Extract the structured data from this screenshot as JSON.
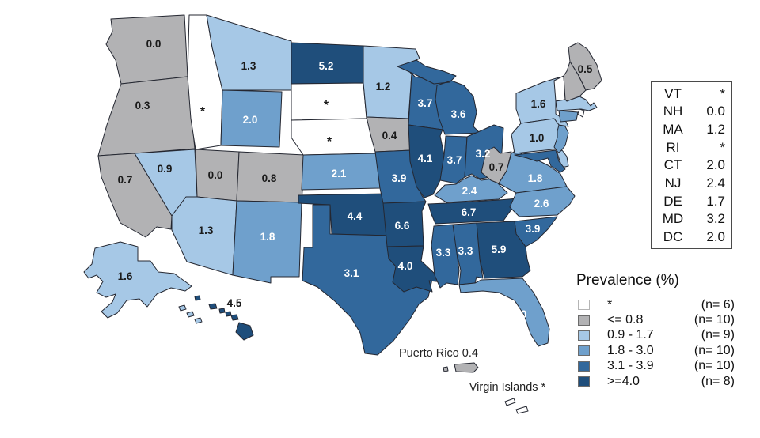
{
  "colors": {
    "star": "#FFFFFF",
    "le_08": "#B2B2B4",
    "c09_17": "#A6C8E6",
    "c18_30": "#6FA0CC",
    "c31_39": "#32689C",
    "ge_40": "#1F4E7B",
    "border": "#242731",
    "label_dark": "#1A1A1A",
    "label_light": "#FFFFFF"
  },
  "map": {
    "states": [
      {
        "id": "WA",
        "label": "0.0",
        "category": "le_08"
      },
      {
        "id": "OR",
        "label": "0.3",
        "category": "le_08"
      },
      {
        "id": "CA",
        "label": "0.7",
        "category": "le_08"
      },
      {
        "id": "ID",
        "label": "*",
        "category": "star"
      },
      {
        "id": "NV",
        "label": "0.9",
        "category": "c09_17"
      },
      {
        "id": "UT",
        "label": "0.0",
        "category": "le_08"
      },
      {
        "id": "AZ",
        "label": "1.3",
        "category": "c09_17"
      },
      {
        "id": "MT",
        "label": "1.3",
        "category": "c09_17"
      },
      {
        "id": "WY",
        "label": "2.0",
        "category": "c18_30"
      },
      {
        "id": "CO",
        "label": "0.8",
        "category": "le_08"
      },
      {
        "id": "NM",
        "label": "1.8",
        "category": "c18_30"
      },
      {
        "id": "ND",
        "label": "5.2",
        "category": "ge_40"
      },
      {
        "id": "SD",
        "label": "*",
        "category": "star"
      },
      {
        "id": "NE",
        "label": "*",
        "category": "star"
      },
      {
        "id": "KS",
        "label": "2.1",
        "category": "c18_30"
      },
      {
        "id": "OK",
        "label": "4.4",
        "category": "ge_40"
      },
      {
        "id": "TX",
        "label": "3.1",
        "category": "c31_39"
      },
      {
        "id": "MN",
        "label": "1.2",
        "category": "c09_17"
      },
      {
        "id": "IA",
        "label": "0.4",
        "category": "le_08"
      },
      {
        "id": "MO",
        "label": "3.9",
        "category": "c31_39"
      },
      {
        "id": "AR",
        "label": "6.6",
        "category": "ge_40"
      },
      {
        "id": "LA",
        "label": "4.0",
        "category": "ge_40"
      },
      {
        "id": "WI",
        "label": "3.7",
        "category": "c31_39"
      },
      {
        "id": "IL",
        "label": "4.1",
        "category": "ge_40"
      },
      {
        "id": "MI",
        "label": "3.6",
        "category": "c31_39"
      },
      {
        "id": "IN",
        "label": "3.7",
        "category": "c31_39"
      },
      {
        "id": "OH",
        "label": "3.2",
        "category": "c31_39"
      },
      {
        "id": "KY",
        "label": "2.4",
        "category": "c18_30"
      },
      {
        "id": "TN",
        "label": "6.7",
        "category": "ge_40"
      },
      {
        "id": "WV",
        "label": "0.7",
        "category": "le_08"
      },
      {
        "id": "VA",
        "label": "1.8",
        "category": "c18_30"
      },
      {
        "id": "NC",
        "label": "2.6",
        "category": "c18_30"
      },
      {
        "id": "SC",
        "label": "3.9",
        "category": "c31_39"
      },
      {
        "id": "GA",
        "label": "5.9",
        "category": "ge_40"
      },
      {
        "id": "AL",
        "label": "3.3",
        "category": "c31_39"
      },
      {
        "id": "MS",
        "label": "3.3",
        "category": "c31_39"
      },
      {
        "id": "FL",
        "label": "3.0",
        "category": "c18_30"
      },
      {
        "id": "NY",
        "label": "1.6",
        "category": "c09_17"
      },
      {
        "id": "PA",
        "label": "1.0",
        "category": "c09_17"
      },
      {
        "id": "ME",
        "label": "0.5",
        "category": "le_08"
      },
      {
        "id": "VT",
        "label": null,
        "category": "star"
      },
      {
        "id": "NH",
        "label": null,
        "category": "le_08"
      },
      {
        "id": "MA",
        "label": null,
        "category": "c09_17"
      },
      {
        "id": "RI",
        "label": null,
        "category": "star"
      },
      {
        "id": "CT",
        "label": null,
        "category": "c18_30"
      },
      {
        "id": "NJ",
        "label": null,
        "category": "c18_30"
      },
      {
        "id": "DE",
        "label": null,
        "category": "c09_17"
      },
      {
        "id": "MD",
        "label": null,
        "category": "c31_39"
      },
      {
        "id": "AK",
        "label": "1.6",
        "category": "c09_17"
      },
      {
        "id": "HI",
        "label": "4.5",
        "category": "ge_40"
      },
      {
        "id": "PR",
        "label": null,
        "category": "le_08"
      },
      {
        "id": "VI",
        "label": null,
        "category": "star"
      }
    ],
    "territories": [
      {
        "id": "PR",
        "text": "Puerto Rico 0.4"
      },
      {
        "id": "VI",
        "text": "Virgin Islands *"
      }
    ]
  },
  "state_list": {
    "rows": [
      {
        "abbr": "VT",
        "value": "*"
      },
      {
        "abbr": "NH",
        "value": "0.0"
      },
      {
        "abbr": "MA",
        "value": "1.2"
      },
      {
        "abbr": "RI",
        "value": "*"
      },
      {
        "abbr": "CT",
        "value": "2.0"
      },
      {
        "abbr": "NJ",
        "value": "2.4"
      },
      {
        "abbr": "DE",
        "value": "1.7"
      },
      {
        "abbr": "MD",
        "value": "3.2"
      },
      {
        "abbr": "DC",
        "value": "2.0"
      }
    ]
  },
  "legend": {
    "title": "Prevalence (%)",
    "items": [
      {
        "label": "*",
        "count": "(n= 6)",
        "category": "star"
      },
      {
        "label": "<= 0.8",
        "count": "(n= 10)",
        "category": "le_08"
      },
      {
        "label": "0.9 - 1.7",
        "count": "(n= 9)",
        "category": "c09_17"
      },
      {
        "label": "1.8 - 3.0",
        "count": "(n= 10)",
        "category": "c18_30"
      },
      {
        "label": "3.1 - 3.9",
        "count": "(n= 10)",
        "category": "c31_39"
      },
      {
        "label": ">=4.0",
        "count": "(n= 8)",
        "category": "ge_40"
      }
    ]
  },
  "chart_data": {
    "type": "heatmap",
    "variant": "us-state-choropleth",
    "title": "Prevalence (%)",
    "legend_position": "bottom-right",
    "classes": [
      {
        "range": "*",
        "n": 6
      },
      {
        "range": "<= 0.8",
        "n": 10
      },
      {
        "range": "0.9 - 1.7",
        "n": 9
      },
      {
        "range": "1.8 - 3.0",
        "n": 10
      },
      {
        "range": "3.1 - 3.9",
        "n": 10
      },
      {
        "range": ">=4.0",
        "n": 8
      }
    ],
    "values": {
      "WA": 0.0,
      "OR": 0.3,
      "CA": 0.7,
      "ID": "*",
      "NV": 0.9,
      "UT": 0.0,
      "AZ": 1.3,
      "MT": 1.3,
      "WY": 2.0,
      "CO": 0.8,
      "NM": 1.8,
      "ND": 5.2,
      "SD": "*",
      "NE": "*",
      "KS": 2.1,
      "OK": 4.4,
      "TX": 3.1,
      "MN": 1.2,
      "IA": 0.4,
      "MO": 3.9,
      "AR": 6.6,
      "LA": 4.0,
      "WI": 3.7,
      "IL": 4.1,
      "MI": 3.6,
      "IN": 3.7,
      "OH": 3.2,
      "KY": 2.4,
      "TN": 6.7,
      "WV": 0.7,
      "VA": 1.8,
      "NC": 2.6,
      "SC": 3.9,
      "GA": 5.9,
      "AL": 3.3,
      "MS": 3.3,
      "FL": 3.0,
      "NY": 1.6,
      "PA": 1.0,
      "ME": 0.5,
      "VT": "*",
      "NH": 0.0,
      "MA": 1.2,
      "RI": "*",
      "CT": 2.0,
      "NJ": 2.4,
      "DE": 1.7,
      "MD": 3.2,
      "DC": 2.0,
      "AK": 1.6,
      "HI": 4.5,
      "PR": 0.4,
      "VI": "*"
    }
  }
}
